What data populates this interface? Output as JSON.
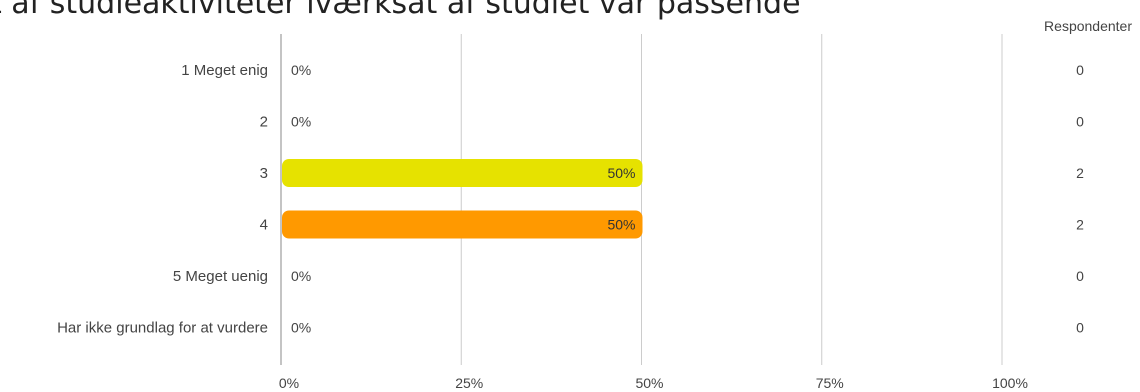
{
  "chart_data": {
    "type": "bar",
    "orientation": "horizontal",
    "title": "t af studieaktiviteter iværksat af studiet var passende",
    "categories": [
      "1 Meget enig",
      "2",
      "3",
      "4",
      "5 Meget uenig",
      "Har ikke grundlag for at vurdere"
    ],
    "values": [
      0,
      0,
      50,
      50,
      0,
      0
    ],
    "value_labels": [
      "0%",
      "0%",
      "50%",
      "50%",
      "0%",
      "0%"
    ],
    "bar_colors": [
      "#3a9e3a",
      "#a6cc38",
      "#e6e200",
      "#ff9900",
      "#e03a2a",
      "#999999"
    ],
    "respondents_header": "Respondenter",
    "respondents": [
      "0",
      "0",
      "2",
      "2",
      "0",
      "0"
    ],
    "xticks": [
      "0%",
      "25%",
      "50%",
      "75%",
      "100%"
    ],
    "xlim": [
      0,
      100
    ],
    "grid": true
  }
}
